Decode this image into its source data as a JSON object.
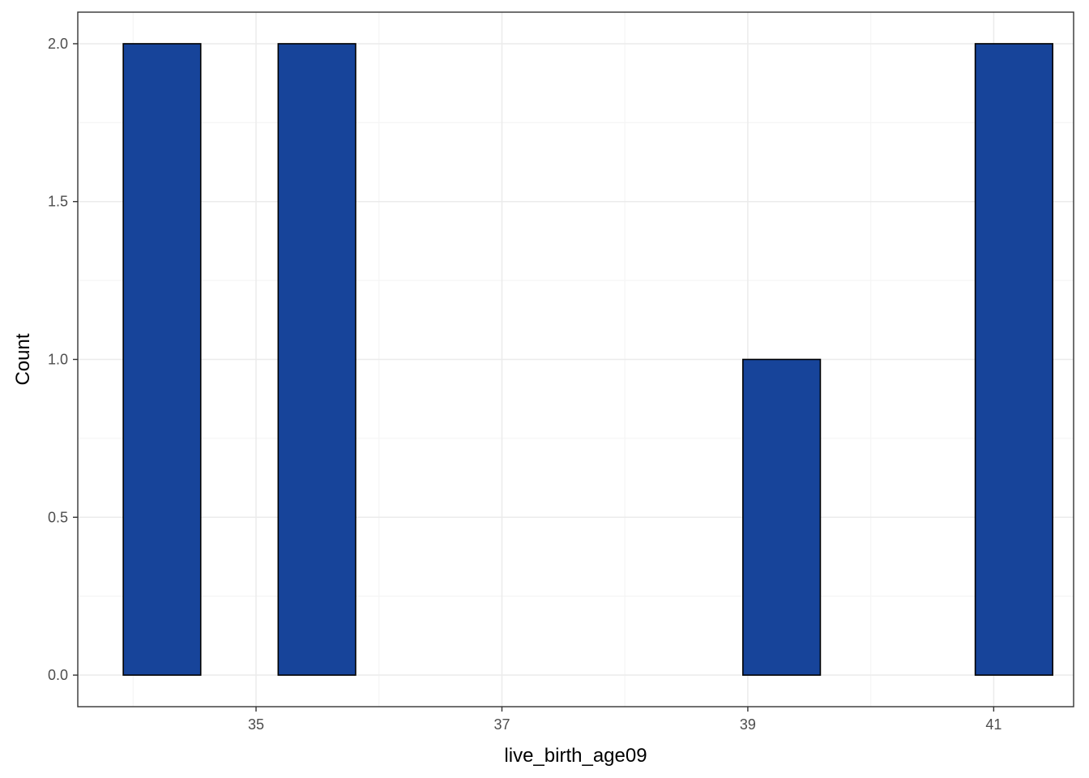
{
  "chart_data": {
    "type": "bar",
    "subtype": "histogram",
    "title": "",
    "xlabel": "live_birth_age09",
    "ylabel": "Count",
    "xlim": [
      33.55,
      41.65
    ],
    "ylim": [
      -0.1,
      2.1
    ],
    "x_ticks": [
      35,
      37,
      39,
      41
    ],
    "y_ticks": [
      0.0,
      0.5,
      1.0,
      1.5,
      2.0
    ],
    "x_tick_labels": [
      "35",
      "37",
      "39",
      "41"
    ],
    "y_tick_labels": [
      "0.0",
      "0.5",
      "1.0",
      "1.5",
      "2.0"
    ],
    "bins": [
      {
        "x_start": 33.92,
        "x_end": 34.55,
        "count": 2
      },
      {
        "x_start": 34.55,
        "x_end": 35.18,
        "count": 0
      },
      {
        "x_start": 35.18,
        "x_end": 35.81,
        "count": 2
      },
      {
        "x_start": 35.81,
        "x_end": 36.44,
        "count": 0
      },
      {
        "x_start": 36.44,
        "x_end": 37.07,
        "count": 0
      },
      {
        "x_start": 37.07,
        "x_end": 37.7,
        "count": 0
      },
      {
        "x_start": 37.7,
        "x_end": 38.33,
        "count": 0
      },
      {
        "x_start": 38.33,
        "x_end": 38.96,
        "count": 0
      },
      {
        "x_start": 38.96,
        "x_end": 39.59,
        "count": 1
      },
      {
        "x_start": 39.59,
        "x_end": 40.22,
        "count": 0
      },
      {
        "x_start": 40.22,
        "x_end": 40.85,
        "count": 0
      },
      {
        "x_start": 40.85,
        "x_end": 41.48,
        "count": 2
      }
    ],
    "colors": {
      "bar_fill": "#17449A",
      "bar_stroke": "#000000",
      "grid_major": "#EBEBEB",
      "grid_minor": "#F5F5F5",
      "panel_border": "#333333",
      "tick_text": "#4D4D4D"
    },
    "grid": true,
    "legend": "none"
  }
}
